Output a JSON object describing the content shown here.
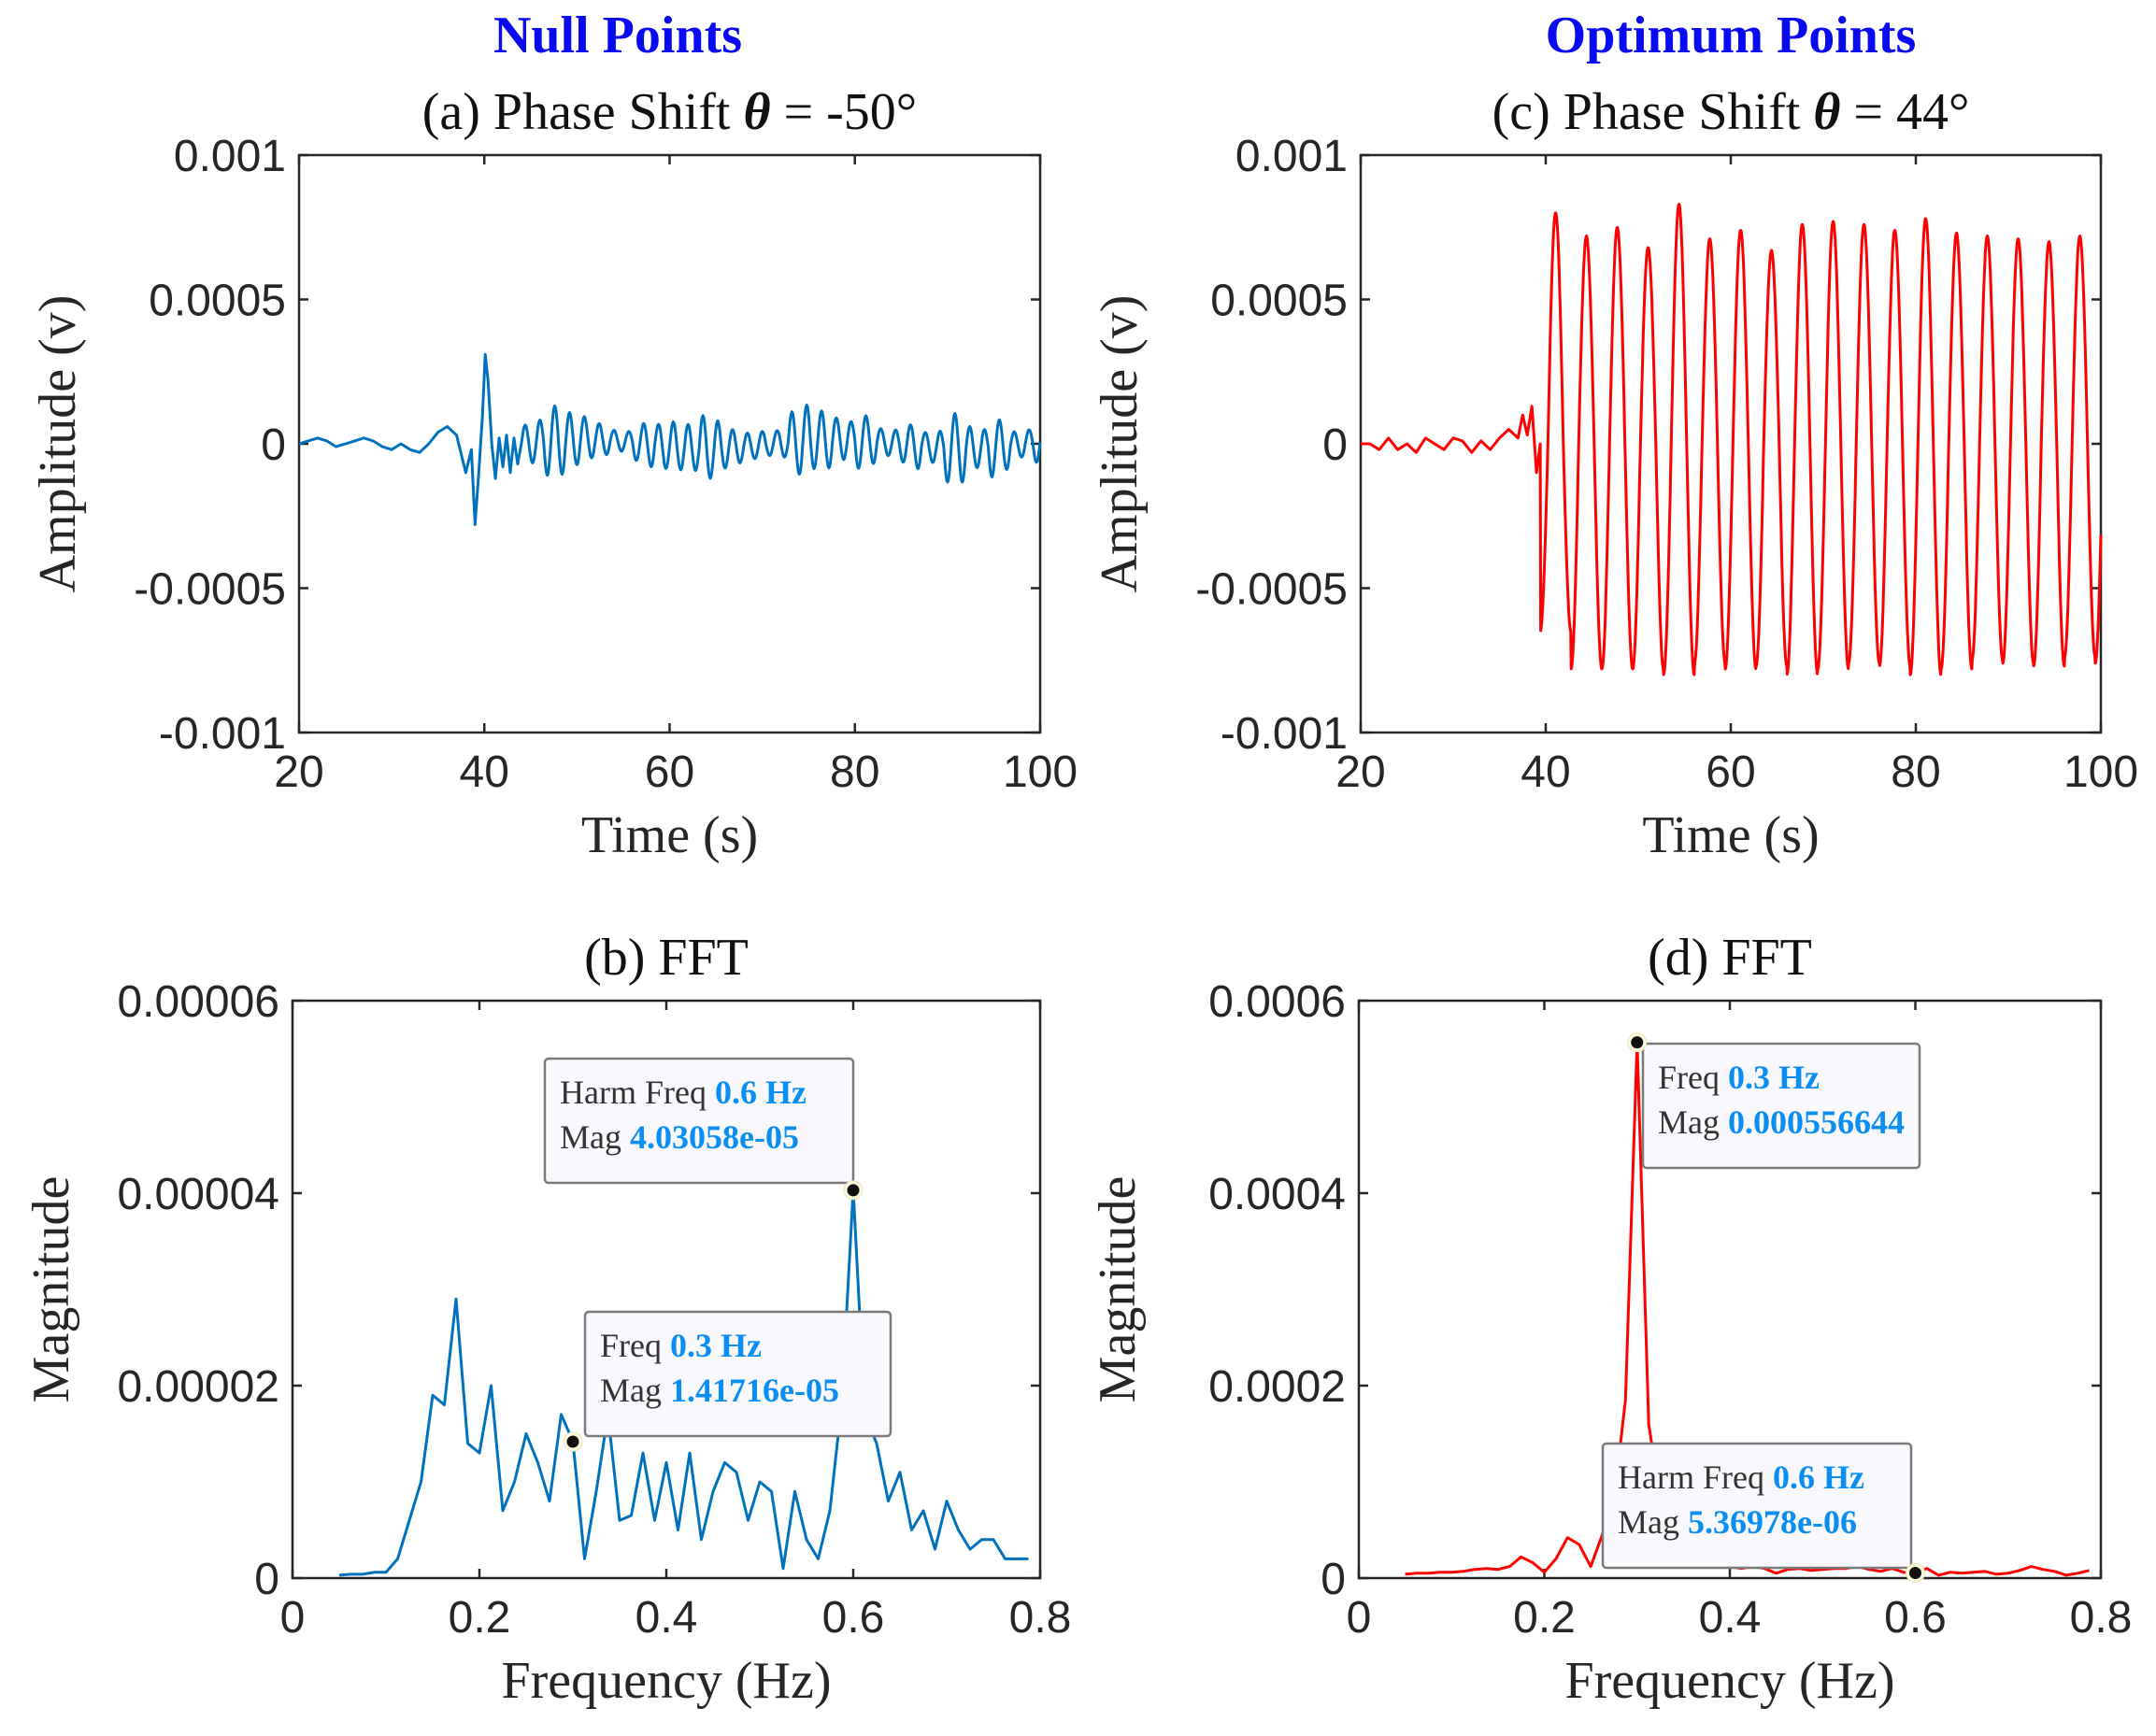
{
  "column_titles": {
    "left": "Null Points",
    "right": "Optimum Points"
  },
  "colors": {
    "blue_series": "#0072BD",
    "red_series": "#FF0000",
    "title_blue": "#0A0AF0",
    "datatip_value": "#0B8EF2"
  },
  "chart_data": [
    {
      "id": "a",
      "type": "line",
      "title": "(a) Phase Shift θ = -50°",
      "title_parts": {
        "prefix": "(a) Phase Shift ",
        "symbol": "θ",
        "suffix": " = -50°"
      },
      "xlabel": "Time (s)",
      "ylabel": "Amplitude (v)",
      "xlim": [
        20,
        100
      ],
      "ylim": [
        -0.001,
        0.001
      ],
      "xticks": [
        20,
        40,
        60,
        80,
        100
      ],
      "xtick_labels": [
        "20",
        "40",
        "60",
        "80",
        "100"
      ],
      "yticks": [
        -0.001,
        -0.0005,
        0,
        0.0005,
        0.001
      ],
      "ytick_labels": [
        "-0.001",
        "-0.0005",
        "0",
        "0.0005",
        "0.001"
      ],
      "color": "#0072BD",
      "signal": {
        "t": [
          20,
          21,
          22,
          23,
          24,
          25,
          26,
          27,
          28,
          29,
          30,
          31,
          32,
          33,
          34,
          35,
          36,
          37,
          38,
          38.6,
          39,
          39.4,
          39.8,
          40.1,
          40.4,
          40.8,
          41.2,
          41.6,
          42,
          42.4,
          42.8,
          43.2,
          43.6,
          44
        ],
        "y": [
          0.0,
          1e-05,
          2e-05,
          1e-05,
          -1e-05,
          0.0,
          1e-05,
          2e-05,
          1e-05,
          -1e-05,
          -2e-05,
          0.0,
          -2e-05,
          -3e-05,
          0.0,
          4e-05,
          6e-05,
          3e-05,
          -0.0001,
          -2e-05,
          -0.00028,
          -0.0001,
          0.0001,
          0.00031,
          0.00022,
          0.0,
          -0.00012,
          2e-05,
          -8e-05,
          3e-05,
          -0.0001,
          2e-05,
          -7e-05,
          0.0
        ],
        "osc_from": 44,
        "osc_to": 100,
        "osc_period": 1.6,
        "osc_amp": [
          8e-05,
          0.00012,
          0.0001,
          9e-05,
          7e-05,
          0.00011,
          9e-05,
          8e-05,
          0.00012,
          0.0001,
          9e-05,
          7e-05,
          0.00013,
          0.0001,
          8e-05,
          0.00014,
          9e-05,
          0.00011,
          6e-05,
          0.00012,
          8e-05,
          0.00015,
          9e-05,
          0.00012
        ]
      }
    },
    {
      "id": "b",
      "type": "line",
      "title": "(b) FFT",
      "xlabel": "Frequency (Hz)",
      "ylabel": "Magnitude",
      "xlim": [
        0,
        0.8
      ],
      "ylim": [
        0,
        6e-05
      ],
      "xticks": [
        0,
        0.2,
        0.4,
        0.6,
        0.8
      ],
      "xtick_labels": [
        "0",
        "0.2",
        "0.4",
        "0.6",
        "0.8"
      ],
      "yticks": [
        0,
        2e-05,
        4e-05,
        6e-05
      ],
      "ytick_labels": [
        "0",
        "0.00002",
        "0.00004",
        "0.00006"
      ],
      "color": "#0072BD",
      "x": [
        0.05,
        0.0625,
        0.075,
        0.0875,
        0.1,
        0.1125,
        0.125,
        0.1375,
        0.15,
        0.1625,
        0.175,
        0.1875,
        0.2,
        0.2125,
        0.225,
        0.2375,
        0.25,
        0.2625,
        0.275,
        0.2875,
        0.3,
        0.3125,
        0.325,
        0.3375,
        0.35,
        0.3625,
        0.375,
        0.3875,
        0.4,
        0.4125,
        0.425,
        0.4375,
        0.45,
        0.4625,
        0.475,
        0.4875,
        0.5,
        0.5125,
        0.525,
        0.5375,
        0.55,
        0.5625,
        0.575,
        0.5875,
        0.6,
        0.6125,
        0.625,
        0.6375,
        0.65,
        0.6625,
        0.675,
        0.6875,
        0.7,
        0.7125,
        0.725,
        0.7375,
        0.75,
        0.7625,
        0.775,
        0.7875
      ],
      "y": [
        3e-07,
        4e-07,
        4e-07,
        6e-07,
        6e-07,
        2e-06,
        6e-06,
        1e-05,
        1.9e-05,
        1.8e-05,
        2.9e-05,
        1.4e-05,
        1.3e-05,
        2e-05,
        7e-06,
        1e-05,
        1.5e-05,
        1.2e-05,
        8e-06,
        1.7e-05,
        1.42e-05,
        2e-06,
        9e-06,
        1.7e-05,
        6e-06,
        6.5e-06,
        1.3e-05,
        6e-06,
        1.2e-05,
        5e-06,
        1.3e-05,
        4e-06,
        9e-06,
        1.2e-05,
        1.1e-05,
        6e-06,
        1e-05,
        9e-06,
        1e-06,
        9e-06,
        4e-06,
        2e-06,
        7e-06,
        1.8e-05,
        4.03e-05,
        1.7e-05,
        1.4e-05,
        8e-06,
        1.1e-05,
        5e-06,
        7e-06,
        3e-06,
        8e-06,
        5e-06,
        3e-06,
        4e-06,
        4e-06,
        2e-06,
        2e-06,
        2e-06
      ],
      "datatips": [
        {
          "x": 0.6,
          "y": 4.03058e-05,
          "lines": [
            {
              "key": "Harm Freq",
              "value": "0.6 Hz"
            },
            {
              "key": "Mag",
              "value": "4.03058e-05"
            }
          ]
        },
        {
          "x": 0.3,
          "y": 1.41716e-05,
          "lines": [
            {
              "key": "Freq",
              "value": "0.3 Hz"
            },
            {
              "key": "Mag",
              "value": "1.41716e-05"
            }
          ]
        }
      ]
    },
    {
      "id": "c",
      "type": "line",
      "title": "(c) Phase Shift θ = 44°",
      "title_parts": {
        "prefix": "(c) Phase Shift ",
        "symbol": "θ",
        "suffix": " = 44°"
      },
      "xlabel": "Time (s)",
      "ylabel": "Amplitude (v)",
      "xlim": [
        20,
        100
      ],
      "ylim": [
        -0.001,
        0.001
      ],
      "xticks": [
        20,
        40,
        60,
        80,
        100
      ],
      "xtick_labels": [
        "20",
        "40",
        "60",
        "80",
        "100"
      ],
      "yticks": [
        -0.001,
        -0.0005,
        0,
        0.0005,
        0.001
      ],
      "ytick_labels": [
        "-0.001",
        "-0.0005",
        "0",
        "0.0005",
        "0.001"
      ],
      "color": "#FF0000",
      "signal": {
        "t": [
          20,
          21,
          22,
          23,
          24,
          25,
          26,
          27,
          28,
          29,
          30,
          31,
          32,
          33,
          34,
          35,
          36,
          37,
          37.5,
          38,
          38.5,
          39,
          39.4
        ],
        "y": [
          0.0,
          0.0,
          -2e-05,
          2e-05,
          -2e-05,
          0.0,
          -3e-05,
          2e-05,
          0.0,
          -2e-05,
          2e-05,
          1e-05,
          -3e-05,
          1e-05,
          -2e-05,
          2e-05,
          5e-05,
          2e-05,
          0.0001,
          3e-05,
          0.00013,
          -0.0001,
          0.0
        ],
        "osc_from": 39.4,
        "osc_to": 100,
        "osc_period": 3.333,
        "osc_peaks": [
          0.0008,
          0.00072,
          0.00075,
          0.00068,
          0.00083,
          0.00071,
          0.00074,
          0.00067,
          0.00076,
          0.00077,
          0.00076,
          0.00074,
          0.00078,
          0.00073,
          0.00072,
          0.00071,
          0.0007,
          0.00072
        ],
        "osc_troughs": [
          -0.00065,
          -0.00078,
          -0.00078,
          -0.00078,
          -0.0008,
          -0.00076,
          -0.00078,
          -0.00077,
          -0.0008,
          -0.00078,
          -0.00076,
          -0.00077,
          -0.0008,
          -0.00078,
          -0.00075,
          -0.00076,
          -0.00077,
          -0.00074,
          -0.00076
        ]
      }
    },
    {
      "id": "d",
      "type": "line",
      "title": "(d) FFT",
      "xlabel": "Frequency (Hz)",
      "ylabel": "Magnitude",
      "xlim": [
        0,
        0.8
      ],
      "ylim": [
        0,
        0.0006
      ],
      "xticks": [
        0,
        0.2,
        0.4,
        0.6,
        0.8
      ],
      "xtick_labels": [
        "0",
        "0.2",
        "0.4",
        "0.6",
        "0.8"
      ],
      "yticks": [
        0,
        0.0002,
        0.0004,
        0.0006
      ],
      "ytick_labels": [
        "0",
        "0.0002",
        "0.0004",
        "0.0006"
      ],
      "color": "#FF0000",
      "x": [
        0.05,
        0.0625,
        0.075,
        0.0875,
        0.1,
        0.1125,
        0.125,
        0.1375,
        0.15,
        0.1625,
        0.175,
        0.1875,
        0.2,
        0.2125,
        0.225,
        0.2375,
        0.25,
        0.2625,
        0.275,
        0.2875,
        0.3,
        0.3125,
        0.325,
        0.3375,
        0.35,
        0.3625,
        0.375,
        0.3875,
        0.4,
        0.4125,
        0.425,
        0.4375,
        0.45,
        0.4625,
        0.475,
        0.4875,
        0.5,
        0.5125,
        0.525,
        0.5375,
        0.55,
        0.5625,
        0.575,
        0.5875,
        0.6,
        0.6125,
        0.625,
        0.6375,
        0.65,
        0.6625,
        0.675,
        0.6875,
        0.7,
        0.7125,
        0.725,
        0.7375,
        0.75,
        0.7625,
        0.775,
        0.7875
      ],
      "y": [
        4e-06,
        5e-06,
        5e-06,
        6e-06,
        6e-06,
        7e-06,
        9e-06,
        1e-05,
        9e-06,
        1.2e-05,
        2.2e-05,
        1.6e-05,
        6e-06,
        2e-05,
        4.2e-05,
        3.5e-05,
        1.2e-05,
        4.5e-05,
        8e-05,
        0.000185,
        0.000556644,
        0.00016,
        8e-05,
        4.5e-05,
        2.5e-05,
        2e-05,
        1.5e-05,
        1.5e-05,
        1.2e-05,
        1e-05,
        1.2e-05,
        1e-05,
        5e-06,
        9e-06,
        1e-05,
        8e-06,
        9e-06,
        1e-05,
        1e-05,
        1.2e-05,
        9e-06,
        7e-06,
        1e-05,
        6e-06,
        5.37e-06,
        1e-05,
        3e-06,
        6e-06,
        5e-06,
        6e-06,
        7e-06,
        4e-06,
        5e-06,
        8e-06,
        1.2e-05,
        9e-06,
        7e-06,
        3e-06,
        5e-06,
        8e-06
      ],
      "datatips": [
        {
          "x": 0.3,
          "y": 0.000556644,
          "lines": [
            {
              "key": "Freq",
              "value": "0.3 Hz"
            },
            {
              "key": "Mag",
              "value": "0.000556644"
            }
          ]
        },
        {
          "x": 0.6,
          "y": 5.36978e-06,
          "lines": [
            {
              "key": "Harm Freq",
              "value": "0.6 Hz"
            },
            {
              "key": "Mag",
              "value": "5.36978e-06"
            }
          ]
        }
      ]
    }
  ]
}
